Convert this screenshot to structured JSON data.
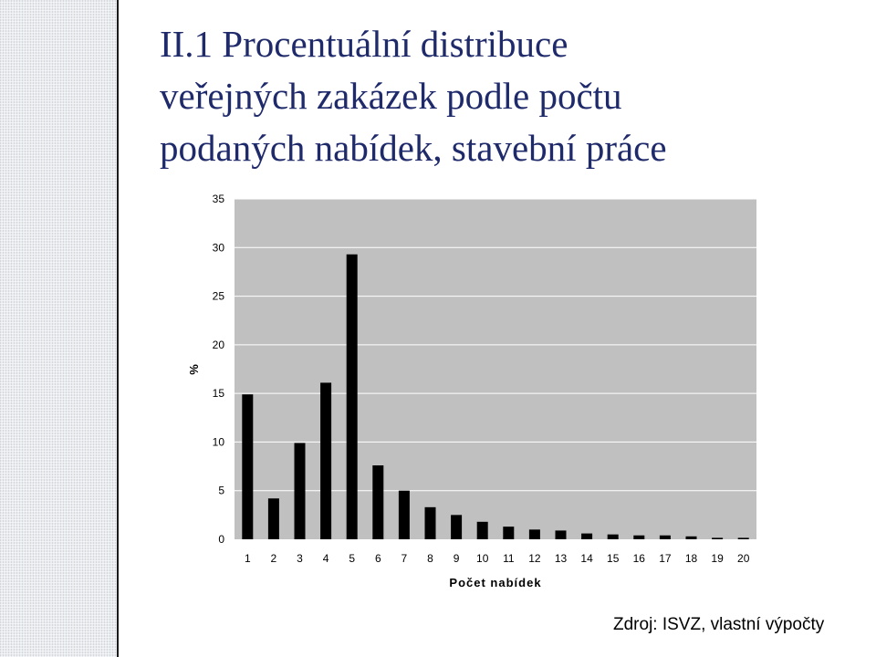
{
  "slide": {
    "title_lines": [
      "II.1 Procentuální distribuce",
      "veřejných zakázek podle počtu",
      "podaných nabídek, stavební práce"
    ],
    "source_note": "Zdroj: ISVZ, vlastní výpočty"
  },
  "colors": {
    "title": "#1f2a6b",
    "plot_background": "#c0c0c0",
    "bar": "#000000",
    "gridline": "#ffffff",
    "chart_background": "#ffffff"
  },
  "chart_data": {
    "type": "bar",
    "title": "",
    "xlabel": "Počet nabídek",
    "ylabel": "%",
    "categories": [
      "1",
      "2",
      "3",
      "4",
      "5",
      "6",
      "7",
      "8",
      "9",
      "10",
      "11",
      "12",
      "13",
      "14",
      "15",
      "16",
      "17",
      "18",
      "19",
      "20"
    ],
    "values": [
      14.9,
      4.2,
      9.9,
      16.1,
      29.3,
      7.6,
      5.0,
      3.3,
      2.5,
      1.8,
      1.3,
      1.0,
      0.9,
      0.6,
      0.5,
      0.4,
      0.4,
      0.3,
      0.15,
      0.15
    ],
    "ylim": [
      0,
      35
    ],
    "yticks": [
      0,
      5,
      10,
      15,
      20,
      25,
      30,
      35
    ],
    "grid": true,
    "legend": "none"
  }
}
